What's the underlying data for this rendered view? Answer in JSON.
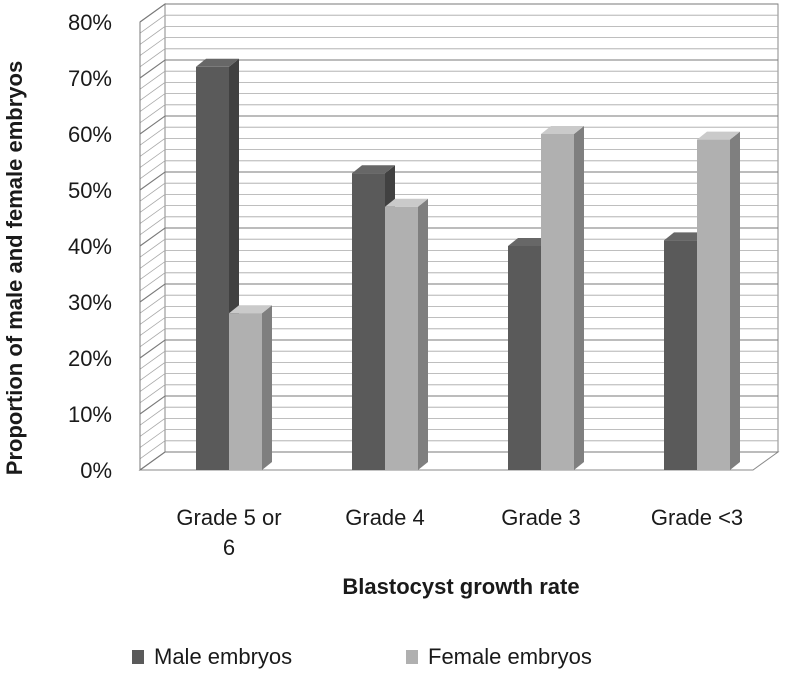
{
  "chart_data": {
    "type": "bar",
    "title": "",
    "xlabel": "Blastocyst growth rate",
    "ylabel": "Proportion of male and female embryos",
    "categories": [
      [
        "Grade 5 or",
        "6"
      ],
      [
        "Grade 4"
      ],
      [
        "Grade 3"
      ],
      [
        "Grade <3"
      ]
    ],
    "series": [
      {
        "name": "Male embryos",
        "values": [
          72,
          53,
          40,
          41
        ],
        "color": "#5a5a5a"
      },
      {
        "name": "Female embryos",
        "values": [
          28,
          47,
          60,
          59
        ],
        "color": "#b0b0b0"
      }
    ],
    "ylim": [
      0,
      80
    ],
    "yticks": [
      0,
      10,
      20,
      30,
      40,
      50,
      60,
      70,
      80
    ],
    "ytick_labels": [
      "0%",
      "10%",
      "20%",
      "30%",
      "40%",
      "50%",
      "60%",
      "70%",
      "80%"
    ],
    "grid": true,
    "legend_position": "bottom",
    "style": "3d-column"
  }
}
